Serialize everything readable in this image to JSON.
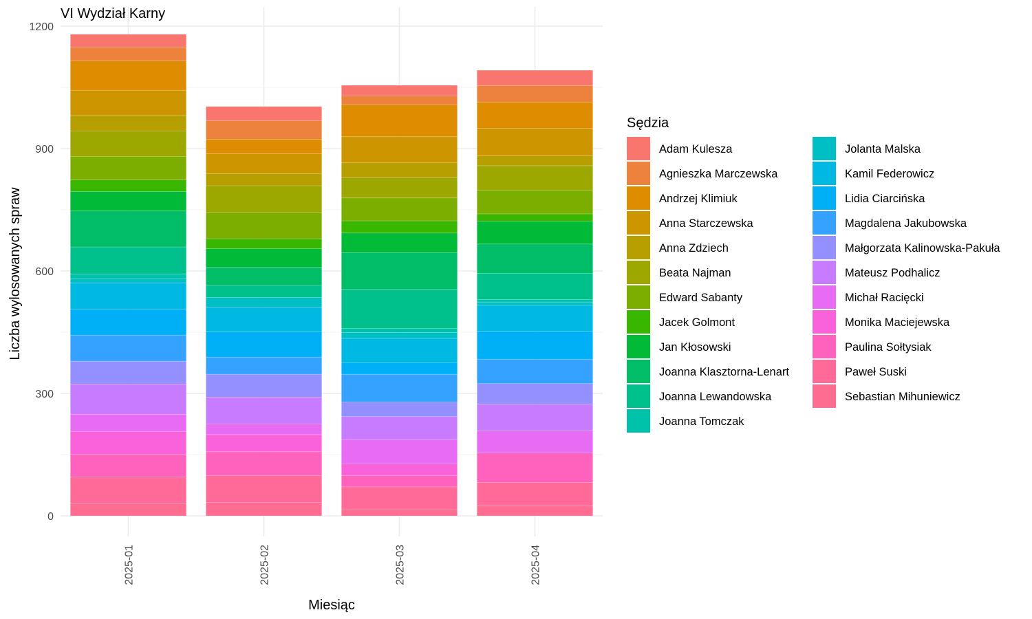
{
  "chart_data": {
    "type": "bar",
    "stacked": true,
    "title": "VI Wydział Karny",
    "xlabel": "Miesiąc",
    "ylabel": "Liczba wylosowanych spraw",
    "categories": [
      "2025-01",
      "2025-02",
      "2025-03",
      "2025-04"
    ],
    "ylim": [
      -50,
      1220
    ],
    "yticks": [
      0,
      300,
      600,
      900,
      1200
    ],
    "legend_title": "Sędzia",
    "legend_position": "right",
    "grid": true,
    "series": [
      {
        "name": "Adam Kulesza",
        "color": "#F8766D",
        "values": [
          31,
          35,
          26,
          38
        ]
      },
      {
        "name": "Agnieszka Marczewska",
        "color": "#EC823C",
        "values": [
          34,
          45,
          22,
          40
        ]
      },
      {
        "name": "Andrzej Klimiuk",
        "color": "#DE8C00",
        "values": [
          72,
          36,
          78,
          64
        ]
      },
      {
        "name": "Anna Starczewska",
        "color": "#CD9600",
        "values": [
          62,
          48,
          64,
          68
        ]
      },
      {
        "name": "Anna Zdziech",
        "color": "#B79F00",
        "values": [
          38,
          30,
          36,
          24
        ]
      },
      {
        "name": "Beata Najman",
        "color": "#9CA700",
        "values": [
          62,
          66,
          50,
          60
        ]
      },
      {
        "name": "Edward Sabanty",
        "color": "#7CAE00",
        "values": [
          58,
          64,
          56,
          58
        ]
      },
      {
        "name": "Jacek Golmont",
        "color": "#39B600",
        "values": [
          28,
          24,
          30,
          18
        ]
      },
      {
        "name": "Jan Kłosowski",
        "color": "#00BA38",
        "values": [
          48,
          46,
          48,
          56
        ]
      },
      {
        "name": "Joanna Klasztorna-Lenart",
        "color": "#00BE67",
        "values": [
          88,
          44,
          90,
          72
        ]
      },
      {
        "name": "Joanna Lewandowska",
        "color": "#00C08B",
        "values": [
          66,
          30,
          96,
          64
        ]
      },
      {
        "name": "Joanna Tomczak",
        "color": "#00C1A9",
        "values": [
          12,
          0,
          10,
          6
        ]
      },
      {
        "name": "Jolanta Malska",
        "color": "#00BFC4",
        "values": [
          10,
          24,
          14,
          8
        ]
      },
      {
        "name": "Kamil Federowicz",
        "color": "#00B9E3",
        "values": [
          64,
          60,
          60,
          64
        ]
      },
      {
        "name": "Lidia Ciarcińska",
        "color": "#00B0F6",
        "values": [
          64,
          62,
          28,
          68
        ]
      },
      {
        "name": "Magdalena Jakubowska",
        "color": "#35A2FF",
        "values": [
          64,
          42,
          68,
          60
        ]
      },
      {
        "name": "Małgorzata Kalinowska-Pakuła",
        "color": "#9590FF",
        "values": [
          56,
          56,
          36,
          50
        ]
      },
      {
        "name": "Mateusz Podhalicz",
        "color": "#C77CFF",
        "values": [
          74,
          66,
          56,
          66
        ]
      },
      {
        "name": "Michał Racięcki",
        "color": "#E76BF3",
        "values": [
          42,
          26,
          60,
          54
        ]
      },
      {
        "name": "Monika Maciejewska",
        "color": "#FA62DB",
        "values": [
          56,
          42,
          28,
          0
        ]
      },
      {
        "name": "Paulina Sołtysiak",
        "color": "#FF62BC",
        "values": [
          56,
          58,
          28,
          72
        ]
      },
      {
        "name": "Paweł Suski",
        "color": "#FF6A98",
        "values": [
          64,
          66,
          56,
          58
        ]
      },
      {
        "name": "Sebastian Mihuniewicz",
        "color": "#FF6C91",
        "values": [
          31,
          33,
          15,
          24
        ]
      }
    ]
  }
}
